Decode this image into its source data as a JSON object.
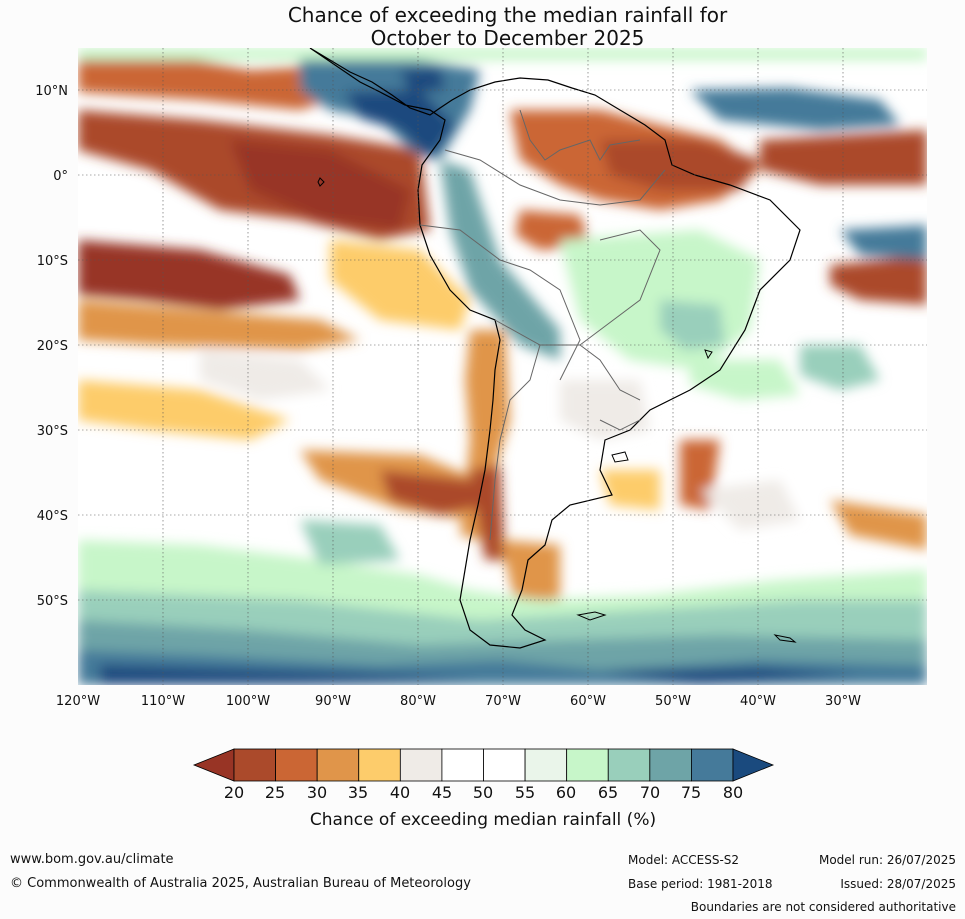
{
  "title": {
    "line1": "Chance of exceeding the median rainfall for",
    "line2": "October to December 2025"
  },
  "map": {
    "lat_labels": [
      "10°N",
      "0°",
      "10°S",
      "20°S",
      "30°S",
      "40°S",
      "50°S"
    ],
    "lon_labels": [
      "120°W",
      "110°W",
      "100°W",
      "90°W",
      "80°W",
      "70°W",
      "60°W",
      "50°W",
      "40°W",
      "30°W"
    ]
  },
  "colorbar": {
    "ticks": [
      "20",
      "25",
      "30",
      "35",
      "40",
      "45",
      "50",
      "55",
      "60",
      "65",
      "70",
      "75",
      "80"
    ],
    "colors": [
      "#983425",
      "#ab4a2b",
      "#cb6634",
      "#e0954a",
      "#fdcc6b",
      "#efebe7",
      "#ffffff",
      "#ffffff",
      "#eaf5ea",
      "#c7f6c9",
      "#99cfbb",
      "#6ea4a7",
      "#457a9a",
      "#1a4a7e"
    ],
    "title": "Chance of exceeding median rainfall (%)"
  },
  "footer": {
    "url": "www.bom.gov.au/climate",
    "copyright": "© Commonwealth of Australia 2025, Australian Bureau of Meteorology",
    "model": "Model: ACCESS-S2",
    "base_period": "Base period: 1981-2018",
    "model_run": "Model run: 26/07/2025",
    "issued": "Issued: 28/07/2025",
    "disclaimer": "Boundaries are not considered authoritative"
  }
}
